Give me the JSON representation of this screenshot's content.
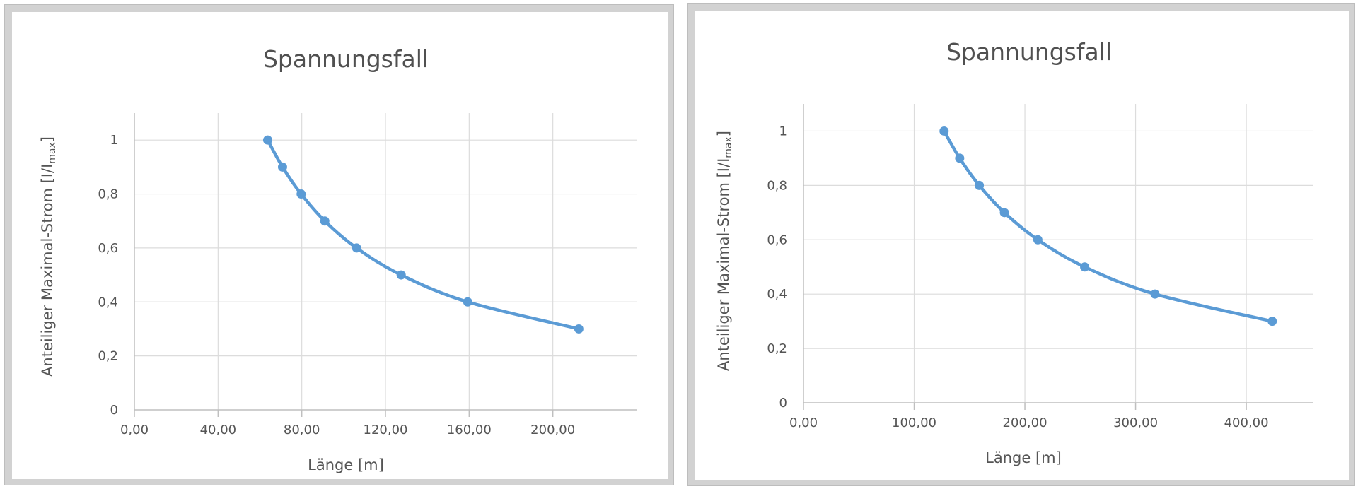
{
  "charts": [
    {
      "title": "Spannungsfall",
      "xlabel": "Länge [m]",
      "ylabel_main": "Anteiliger Maximal-Strom [I/I",
      "ylabel_sub": "max",
      "ylabel_close": "]"
    },
    {
      "title": "Spannungsfall",
      "xlabel": "Länge [m]",
      "ylabel_main": "Anteiliger Maximal-Strom [I/I",
      "ylabel_sub": "max",
      "ylabel_close": "]"
    }
  ],
  "chart_data": [
    {
      "type": "line",
      "title": "Spannungsfall",
      "xlabel": "Länge [m]",
      "ylabel": "Anteiliger Maximal-Strom [I/Imax]",
      "xlim": [
        0,
        240
      ],
      "ylim": [
        0,
        1.1
      ],
      "xticks": [
        0,
        40,
        80,
        120,
        160,
        200
      ],
      "xtick_labels": [
        "0,00",
        "40,00",
        "80,00",
        "120,00",
        "160,00",
        "200,00"
      ],
      "yticks": [
        0,
        0.2,
        0.4,
        0.6,
        0.8,
        1
      ],
      "ytick_labels": [
        "0",
        "0,2",
        "0,4",
        "0,6",
        "0,8",
        "1"
      ],
      "grid": true,
      "line_color": "#5b9bd5",
      "series": [
        {
          "x": [
            63.7,
            70.8,
            79.7,
            91.0,
            106.2,
            127.5,
            159.3,
            212.4
          ],
          "y": [
            1.0,
            0.9,
            0.8,
            0.7,
            0.6,
            0.5,
            0.4,
            0.3
          ]
        }
      ]
    },
    {
      "type": "line",
      "title": "Spannungsfall",
      "xlabel": "Länge [m]",
      "ylabel": "Anteiliger Maximal-Strom [I/Imax]",
      "xlim": [
        0,
        460
      ],
      "ylim": [
        0,
        1.1
      ],
      "xticks": [
        0,
        100,
        200,
        300,
        400
      ],
      "xtick_labels": [
        "0,00",
        "100,00",
        "200,00",
        "300,00",
        "400,00"
      ],
      "yticks": [
        0,
        0.2,
        0.4,
        0.6,
        0.8,
        1
      ],
      "ytick_labels": [
        "0",
        "0,2",
        "0,4",
        "0,6",
        "0,8",
        "1"
      ],
      "grid": true,
      "line_color": "#5b9bd5",
      "series": [
        {
          "x": [
            127.0,
            141.1,
            158.8,
            181.5,
            211.7,
            254.0,
            317.5,
            423.4
          ],
          "y": [
            1.0,
            0.9,
            0.8,
            0.7,
            0.6,
            0.5,
            0.4,
            0.3
          ]
        }
      ]
    }
  ]
}
